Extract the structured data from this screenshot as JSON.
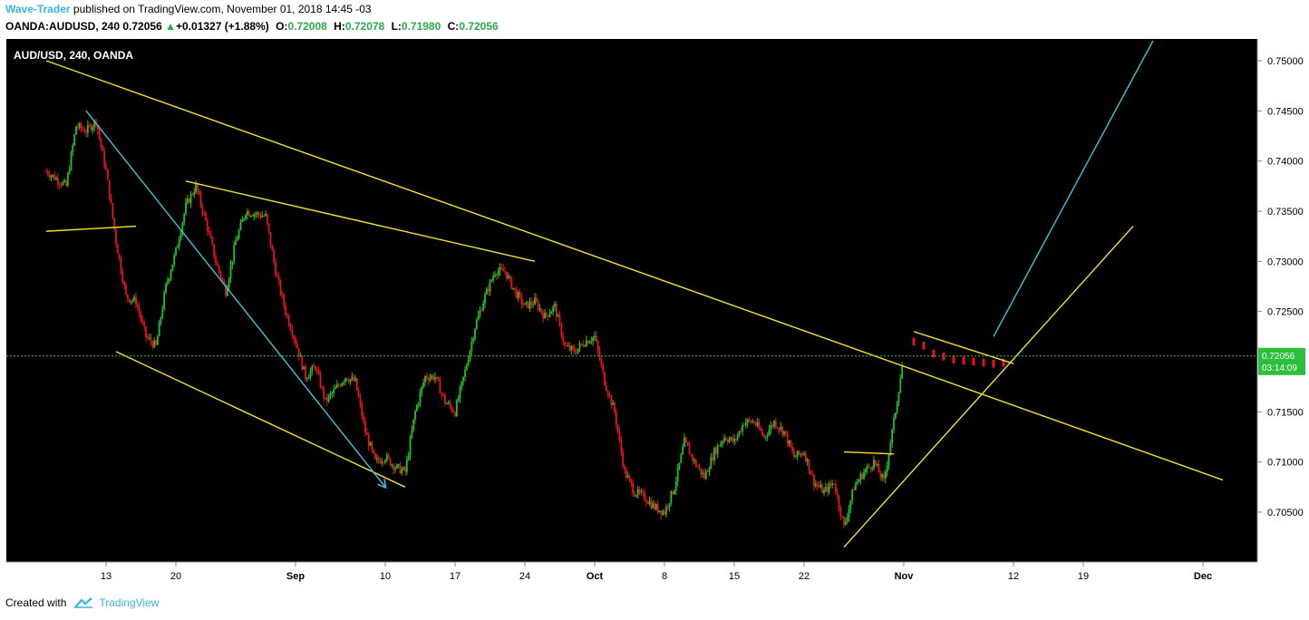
{
  "header": {
    "author": "Wave-Trader",
    "published_text": " published on TradingView.com, November 01, 2018 14:45 -03",
    "symbol": "OANDA:AUDUSD, 240",
    "last": "0.72056",
    "change": "+0.01327 (+1.88%)",
    "o_label": "O:",
    "o_val": "0.72008",
    "h_label": "H:",
    "h_val": "0.72078",
    "l_label": "L:",
    "l_val": "0.71980",
    "c_label": "C:",
    "c_val": "0.72056"
  },
  "footer": {
    "created_with": "Created with",
    "brand": "TradingView"
  },
  "colors": {
    "background": "#000000",
    "up": "#22c22a",
    "down": "#e5141e",
    "trend_yellow": "#f2e233",
    "trend_cyan": "#3cc4da",
    "price_tag": "#2cbf3c",
    "axis_text": "#000000"
  },
  "chart_data": {
    "type": "candlestick",
    "title": "AUD/USD, 240, OANDA",
    "price_axis": [
      "0.75000",
      "0.74500",
      "0.74000",
      "0.73500",
      "0.73000",
      "0.72500",
      "0.72056",
      "0.71500",
      "0.71000",
      "0.70500"
    ],
    "time_axis": [
      "13",
      "20",
      "Sep",
      "10",
      "17",
      "24",
      "Oct",
      "8",
      "15",
      "22",
      "Nov",
      "12",
      "19",
      "Dec"
    ],
    "last_price": "0.72056",
    "countdown": "03:14:09",
    "ylim": [
      0.6985,
      0.7523
    ],
    "path": [
      [
        "2018-08-07",
        0.739
      ],
      [
        "2018-08-09",
        0.7375
      ],
      [
        "2018-08-10",
        0.7435
      ],
      [
        "2018-08-11",
        0.743
      ],
      [
        "2018-08-12",
        0.744
      ],
      [
        "2018-08-13",
        0.739
      ],
      [
        "2018-08-14",
        0.732
      ],
      [
        "2018-08-15",
        0.7265
      ],
      [
        "2018-08-16",
        0.726
      ],
      [
        "2018-08-17",
        0.7225
      ],
      [
        "2018-08-18",
        0.7215
      ],
      [
        "2018-08-19",
        0.7275
      ],
      [
        "2018-08-20",
        0.731
      ],
      [
        "2018-08-21",
        0.7355
      ],
      [
        "2018-08-22",
        0.7375
      ],
      [
        "2018-08-23",
        0.734
      ],
      [
        "2018-08-24",
        0.73
      ],
      [
        "2018-08-25",
        0.727
      ],
      [
        "2018-08-26",
        0.732
      ],
      [
        "2018-08-27",
        0.735
      ],
      [
        "2018-08-29",
        0.7345
      ],
      [
        "2018-08-30",
        0.729
      ],
      [
        "2018-08-31",
        0.725
      ],
      [
        "2018-09-01",
        0.722
      ],
      [
        "2018-09-02",
        0.7185
      ],
      [
        "2018-09-03",
        0.7195
      ],
      [
        "2018-09-04",
        0.716
      ],
      [
        "2018-09-06",
        0.7185
      ],
      [
        "2018-09-07",
        0.718
      ],
      [
        "2018-09-08",
        0.713
      ],
      [
        "2018-09-09",
        0.71
      ],
      [
        "2018-09-10",
        0.7105
      ],
      [
        "2018-09-11",
        0.7095
      ],
      [
        "2018-09-12",
        0.709
      ],
      [
        "2018-09-13",
        0.715
      ],
      [
        "2018-09-14",
        0.7185
      ],
      [
        "2018-09-15",
        0.7185
      ],
      [
        "2018-09-16",
        0.716
      ],
      [
        "2018-09-17",
        0.715
      ],
      [
        "2018-09-18",
        0.719
      ],
      [
        "2018-09-19",
        0.7235
      ],
      [
        "2018-09-20",
        0.7265
      ],
      [
        "2018-09-21",
        0.729
      ],
      [
        "2018-09-22",
        0.729
      ],
      [
        "2018-09-23",
        0.727
      ],
      [
        "2018-09-24",
        0.7255
      ],
      [
        "2018-09-25",
        0.726
      ],
      [
        "2018-09-26",
        0.7245
      ],
      [
        "2018-09-27",
        0.7255
      ],
      [
        "2018-09-28",
        0.7215
      ],
      [
        "2018-09-29",
        0.721
      ],
      [
        "2018-09-30",
        0.722
      ],
      [
        "2018-10-01",
        0.7225
      ],
      [
        "2018-10-02",
        0.718
      ],
      [
        "2018-10-03",
        0.715
      ],
      [
        "2018-10-04",
        0.709
      ],
      [
        "2018-10-05",
        0.707
      ],
      [
        "2018-10-06",
        0.7065
      ],
      [
        "2018-10-07",
        0.7055
      ],
      [
        "2018-10-08",
        0.705
      ],
      [
        "2018-10-09",
        0.7075
      ],
      [
        "2018-10-10",
        0.712
      ],
      [
        "2018-10-11",
        0.71
      ],
      [
        "2018-10-12",
        0.7085
      ],
      [
        "2018-10-13",
        0.711
      ],
      [
        "2018-10-14",
        0.7125
      ],
      [
        "2018-10-15",
        0.712
      ],
      [
        "2018-10-16",
        0.714
      ],
      [
        "2018-10-17",
        0.714
      ],
      [
        "2018-10-18",
        0.7125
      ],
      [
        "2018-10-19",
        0.714
      ],
      [
        "2018-10-20",
        0.713
      ],
      [
        "2018-10-21",
        0.7105
      ],
      [
        "2018-10-22",
        0.711
      ],
      [
        "2018-10-23",
        0.708
      ],
      [
        "2018-10-24",
        0.707
      ],
      [
        "2018-10-25",
        0.708
      ],
      [
        "2018-10-26",
        0.7035
      ],
      [
        "2018-10-27",
        0.7075
      ],
      [
        "2018-10-28",
        0.709
      ],
      [
        "2018-10-29",
        0.71
      ],
      [
        "2018-10-30",
        0.708
      ],
      [
        "2018-10-31",
        0.714
      ],
      [
        "2018-11-01",
        0.7206
      ]
    ],
    "projection": {
      "color": "down",
      "points": [
        [
          "2018-11-02",
          0.722
        ],
        [
          "2018-11-03",
          0.7216
        ],
        [
          "2018-11-04",
          0.7208
        ],
        [
          "2018-11-05",
          0.7205
        ],
        [
          "2018-11-06",
          0.7202
        ],
        [
          "2018-11-07",
          0.7201
        ],
        [
          "2018-11-08",
          0.72
        ],
        [
          "2018-11-09",
          0.7199
        ],
        [
          "2018-11-10",
          0.7198
        ],
        [
          "2018-11-11",
          0.7199
        ]
      ]
    },
    "trendlines": [
      {
        "color": "yellow",
        "from": [
          "2018-08-07",
          0.75
        ],
        "to": [
          "2018-12-03",
          0.7082
        ]
      },
      {
        "color": "yellow",
        "from": [
          "2018-08-07",
          0.733
        ],
        "to": [
          "2018-08-16",
          0.7335
        ]
      },
      {
        "color": "yellow",
        "from": [
          "2018-08-21",
          0.738
        ],
        "to": [
          "2018-09-25",
          0.73
        ]
      },
      {
        "color": "yellow",
        "from": [
          "2018-08-14",
          0.721
        ],
        "to": [
          "2018-09-12",
          0.7075
        ]
      },
      {
        "color": "yellow",
        "from": [
          "2018-10-26",
          0.7015
        ],
        "to": [
          "2018-11-24",
          0.7335
        ]
      },
      {
        "color": "yellow",
        "from": [
          "2018-10-26",
          0.711
        ],
        "to": [
          "2018-10-31",
          0.7108
        ]
      },
      {
        "color": "yellow",
        "from": [
          "2018-11-02",
          0.723
        ],
        "to": [
          "2018-11-12",
          0.7198
        ]
      },
      {
        "color": "cyan",
        "from": [
          "2018-08-11",
          0.745
        ],
        "to": [
          "2018-09-10",
          0.7075
        ],
        "arrow": true
      },
      {
        "color": "cyan",
        "from": [
          "2018-11-10",
          0.7225
        ],
        "to": [
          "2018-11-26",
          0.752
        ]
      }
    ]
  }
}
